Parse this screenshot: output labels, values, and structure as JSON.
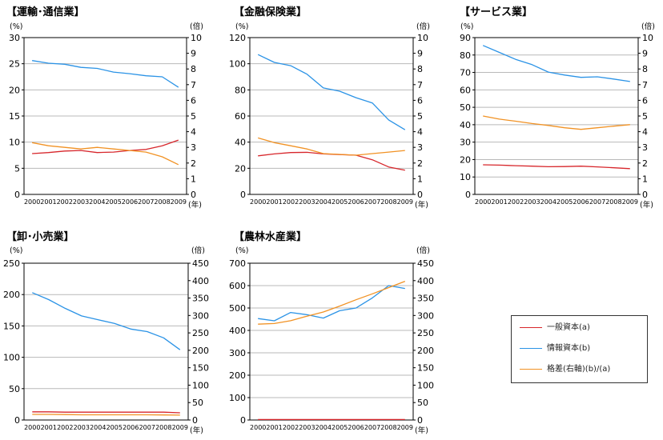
{
  "colors": {
    "general": "#d7262b",
    "info": "#2b93e6",
    "gap": "#f19224"
  },
  "legend": {
    "items": [
      {
        "label": "一般資本(a)",
        "color": "#d7262b"
      },
      {
        "label": "情報資本(b)",
        "color": "#2b93e6"
      },
      {
        "label": "格差(右軸)(b)/(a)",
        "color": "#f19224"
      }
    ]
  },
  "chart_data": [
    {
      "type": "line",
      "title": "【運輸･通信業】",
      "left_unit": "(%)",
      "right_unit": "(倍)",
      "x_unit": "(年)",
      "categories": [
        "2000",
        "2001",
        "2002",
        "2003",
        "2004",
        "2005",
        "2006",
        "2007",
        "2008",
        "2009"
      ],
      "ylim_left": [
        0,
        30
      ],
      "yticks_left": [
        0,
        5,
        10,
        15,
        20,
        25,
        30
      ],
      "ylim_right": [
        0,
        10
      ],
      "yticks_right": [
        0,
        1,
        2,
        3,
        4,
        5,
        6,
        7,
        8,
        9,
        10
      ],
      "series": [
        {
          "key": "general",
          "axis": "left",
          "values": [
            7.8,
            8.0,
            8.3,
            8.4,
            8.0,
            8.1,
            8.4,
            8.6,
            9.3,
            10.4
          ]
        },
        {
          "key": "info",
          "axis": "left",
          "values": [
            25.6,
            25.1,
            24.9,
            24.3,
            24.1,
            23.4,
            23.1,
            22.7,
            22.5,
            20.5
          ]
        },
        {
          "key": "gap",
          "axis": "right",
          "values": [
            3.3,
            3.1,
            3.0,
            2.9,
            3.0,
            2.9,
            2.8,
            2.7,
            2.4,
            1.9
          ]
        }
      ]
    },
    {
      "type": "line",
      "title": "【金融保険業】",
      "left_unit": "(%)",
      "right_unit": "(倍)",
      "x_unit": "(年)",
      "categories": [
        "2000",
        "2001",
        "2002",
        "2003",
        "2004",
        "2005",
        "2006",
        "2007",
        "2008",
        "2009"
      ],
      "ylim_left": [
        0,
        120
      ],
      "yticks_left": [
        0,
        20,
        40,
        60,
        80,
        100,
        120
      ],
      "ylim_right": [
        0,
        10
      ],
      "yticks_right": [
        0,
        1,
        2,
        3,
        4,
        5,
        6,
        7,
        8,
        9,
        10
      ],
      "series": [
        {
          "key": "general",
          "axis": "left",
          "values": [
            29.5,
            31.0,
            32.0,
            32.2,
            31.0,
            30.5,
            30.0,
            26.5,
            21.0,
            18.5
          ]
        },
        {
          "key": "info",
          "axis": "left",
          "values": [
            107,
            101,
            98.5,
            92,
            81.5,
            79,
            74,
            70,
            57,
            49.5
          ]
        },
        {
          "key": "gap",
          "axis": "right",
          "values": [
            3.6,
            3.3,
            3.1,
            2.9,
            2.6,
            2.55,
            2.5,
            2.6,
            2.7,
            2.8
          ]
        }
      ]
    },
    {
      "type": "line",
      "title": "【サービス業】",
      "left_unit": "(%)",
      "right_unit": "(倍)",
      "x_unit": "(年)",
      "categories": [
        "2000",
        "2001",
        "2002",
        "2003",
        "2004",
        "2005",
        "2006",
        "2007",
        "2008",
        "2009"
      ],
      "ylim_left": [
        0,
        90
      ],
      "yticks_left": [
        0,
        10,
        20,
        30,
        40,
        50,
        60,
        70,
        80,
        90
      ],
      "ylim_right": [
        0,
        10
      ],
      "yticks_right": [
        0,
        1,
        2,
        3,
        4,
        5,
        6,
        7,
        8,
        9,
        10
      ],
      "series": [
        {
          "key": "general",
          "axis": "left",
          "values": [
            17.0,
            16.8,
            16.5,
            16.2,
            15.9,
            16.0,
            16.2,
            15.8,
            15.3,
            14.8
          ]
        },
        {
          "key": "info",
          "axis": "left",
          "values": [
            85.5,
            81.5,
            77.5,
            74.5,
            70.2,
            68.5,
            67.2,
            67.5,
            66.2,
            64.8
          ]
        },
        {
          "key": "gap",
          "axis": "right",
          "values": [
            5.0,
            4.8,
            4.67,
            4.52,
            4.4,
            4.25,
            4.15,
            4.25,
            4.35,
            4.45
          ]
        }
      ]
    },
    {
      "type": "line",
      "title": "【卸･小売業】",
      "left_unit": "(%)",
      "right_unit": "(倍)",
      "x_unit": "(年)",
      "categories": [
        "2000",
        "2001",
        "2002",
        "2003",
        "2004",
        "2005",
        "2006",
        "2007",
        "2008",
        "2009"
      ],
      "ylim_left": [
        0,
        250
      ],
      "yticks_left": [
        0,
        50,
        100,
        150,
        200,
        250
      ],
      "ylim_right": [
        0,
        450
      ],
      "yticks_right": [
        0,
        50,
        100,
        150,
        200,
        250,
        300,
        350,
        400,
        450
      ],
      "series": [
        {
          "key": "general",
          "axis": "left",
          "values": [
            13,
            13,
            12.5,
            12.5,
            12.5,
            12.5,
            12.5,
            12.5,
            12.5,
            11.5
          ]
        },
        {
          "key": "info",
          "axis": "left",
          "values": [
            203,
            192,
            178,
            166,
            160,
            154,
            145,
            141,
            131,
            112
          ]
        },
        {
          "key": "gap",
          "axis": "right",
          "values": [
            16,
            16,
            15.5,
            15,
            15,
            15,
            15,
            15,
            14.5,
            14
          ]
        }
      ]
    },
    {
      "type": "line",
      "title": "【農林水産業】",
      "left_unit": "(%)",
      "right_unit": "(倍)",
      "x_unit": "(年)",
      "categories": [
        "2000",
        "2001",
        "2002",
        "2003",
        "2004",
        "2005",
        "2006",
        "2007",
        "2008",
        "2009"
      ],
      "ylim_left": [
        0,
        700
      ],
      "yticks_left": [
        0,
        100,
        200,
        300,
        400,
        500,
        600,
        700
      ],
      "ylim_right": [
        0,
        450
      ],
      "yticks_right": [
        0,
        50,
        100,
        150,
        200,
        250,
        300,
        350,
        400,
        450
      ],
      "series": [
        {
          "key": "general",
          "axis": "left",
          "values": [
            2.0,
            2.0,
            2.0,
            2.0,
            2.0,
            2.0,
            2.0,
            2.0,
            2.0,
            2.0
          ]
        },
        {
          "key": "info",
          "axis": "left",
          "values": [
            453,
            443,
            480,
            470,
            455,
            488,
            500,
            545,
            600,
            587
          ]
        },
        {
          "key": "gap",
          "axis": "right",
          "values": [
            275,
            277,
            285,
            298,
            310,
            327,
            345,
            362,
            380,
            398
          ]
        }
      ]
    }
  ]
}
